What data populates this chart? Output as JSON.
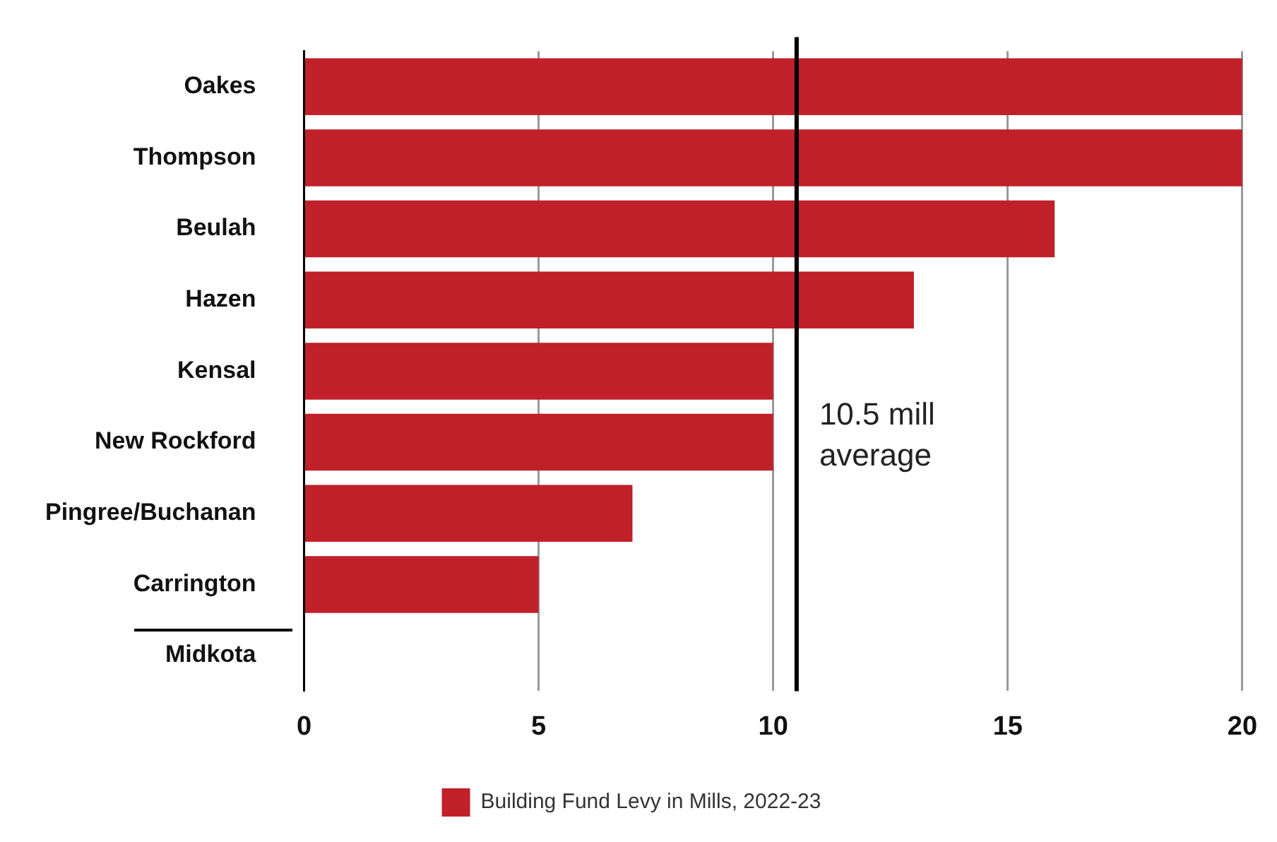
{
  "chart_data": {
    "type": "bar",
    "orientation": "horizontal",
    "categories": [
      "Oakes",
      "Thompson",
      "Beulah",
      "Hazen",
      "Kensal",
      "New Rockford",
      "Pingree/Buchanan",
      "Carrington",
      "Midkota"
    ],
    "series": [
      {
        "name": "Building Fund Levy in Mills, 2022-23",
        "color": "#c0202a",
        "values": [
          20,
          20,
          16,
          13,
          10,
          10,
          7,
          5,
          0
        ]
      }
    ],
    "xlim": [
      0,
      20
    ],
    "xticks": [
      0,
      5,
      10,
      15,
      20
    ],
    "grid": "x",
    "legend": "bottom",
    "ref_lines": [
      {
        "axis": "x",
        "value": 10.5,
        "label": "10.5 mill average",
        "color": "#000000"
      }
    ]
  }
}
